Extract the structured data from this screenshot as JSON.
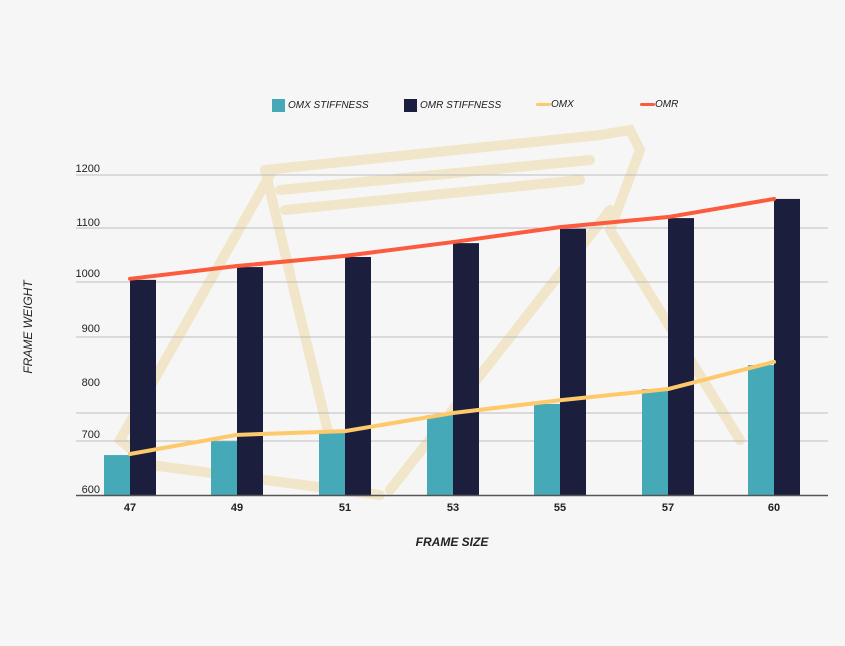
{
  "chart_data": {
    "type": "bar",
    "title": "",
    "xlabel": "FRAME SIZE",
    "ylabel": "FRAME WEIGHT",
    "categories": [
      "47",
      "49",
      "51",
      "53",
      "55",
      "57",
      "60"
    ],
    "yticks": [
      "600",
      "700",
      "800",
      "900",
      "1000",
      "1100",
      "1200"
    ],
    "ylim": [
      600,
      1200
    ],
    "grid": true,
    "legend_position": "top",
    "series": [
      {
        "name": "OMX STIFFNESS",
        "type": "bar",
        "color": "#46a9b8",
        "values": [
          675,
          701,
          718,
          750,
          771,
          799,
          844
        ]
      },
      {
        "name": "OMR STIFFNESS",
        "type": "bar",
        "color": "#1b1e3c",
        "values": [
          1004,
          1028,
          1047,
          1073,
          1100,
          1120,
          1156
        ]
      },
      {
        "name": "OMX",
        "type": "line",
        "color": "#fec96a",
        "values": [
          677,
          713,
          720,
          754,
          778,
          799,
          850
        ]
      },
      {
        "name": "OMR",
        "type": "line",
        "color": "#fc5b3d",
        "values": [
          1006,
          1030,
          1049,
          1075,
          1103,
          1122,
          1156
        ]
      }
    ]
  }
}
